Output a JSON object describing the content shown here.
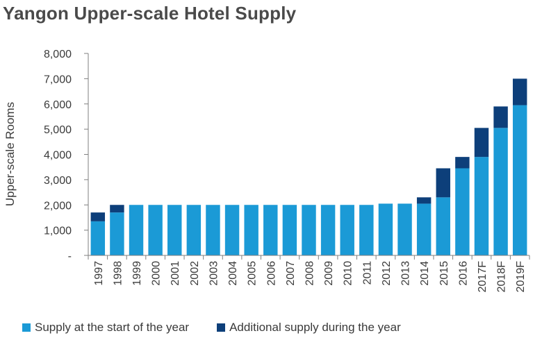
{
  "chart_data": {
    "type": "bar",
    "stacked": true,
    "title": "Yangon Upper-scale Hotel Supply",
    "ylabel": "Upper-scale Rooms",
    "xlabel": "",
    "ylim": [
      0,
      8000
    ],
    "yticks": [
      "-",
      "1,000",
      "2,000",
      "3,000",
      "4,000",
      "5,000",
      "6,000",
      "7,000",
      "8,000"
    ],
    "categories": [
      "1997",
      "1998",
      "1999",
      "2000",
      "2001",
      "2002",
      "2003",
      "2004",
      "2005",
      "2006",
      "2007",
      "2008",
      "2009",
      "2010",
      "2011",
      "2012",
      "2013",
      "2014",
      "2015",
      "2016",
      "2017F",
      "2018F",
      "2019F"
    ],
    "series": [
      {
        "name": "Supply at the start of the year",
        "color": "#1b9ad6",
        "values": [
          1350,
          1700,
          2000,
          2000,
          2000,
          2000,
          2000,
          2000,
          2000,
          2000,
          2000,
          2000,
          2000,
          2000,
          2000,
          2050,
          2050,
          2050,
          2300,
          3450,
          3900,
          5050,
          5950
        ]
      },
      {
        "name": "Additional supply during the year",
        "color": "#0d3f7a",
        "values": [
          350,
          300,
          0,
          0,
          0,
          0,
          0,
          0,
          0,
          0,
          0,
          0,
          0,
          0,
          0,
          0,
          0,
          250,
          1150,
          450,
          1150,
          850,
          1050
        ]
      }
    ],
    "grid": false,
    "legend": "bottom"
  }
}
